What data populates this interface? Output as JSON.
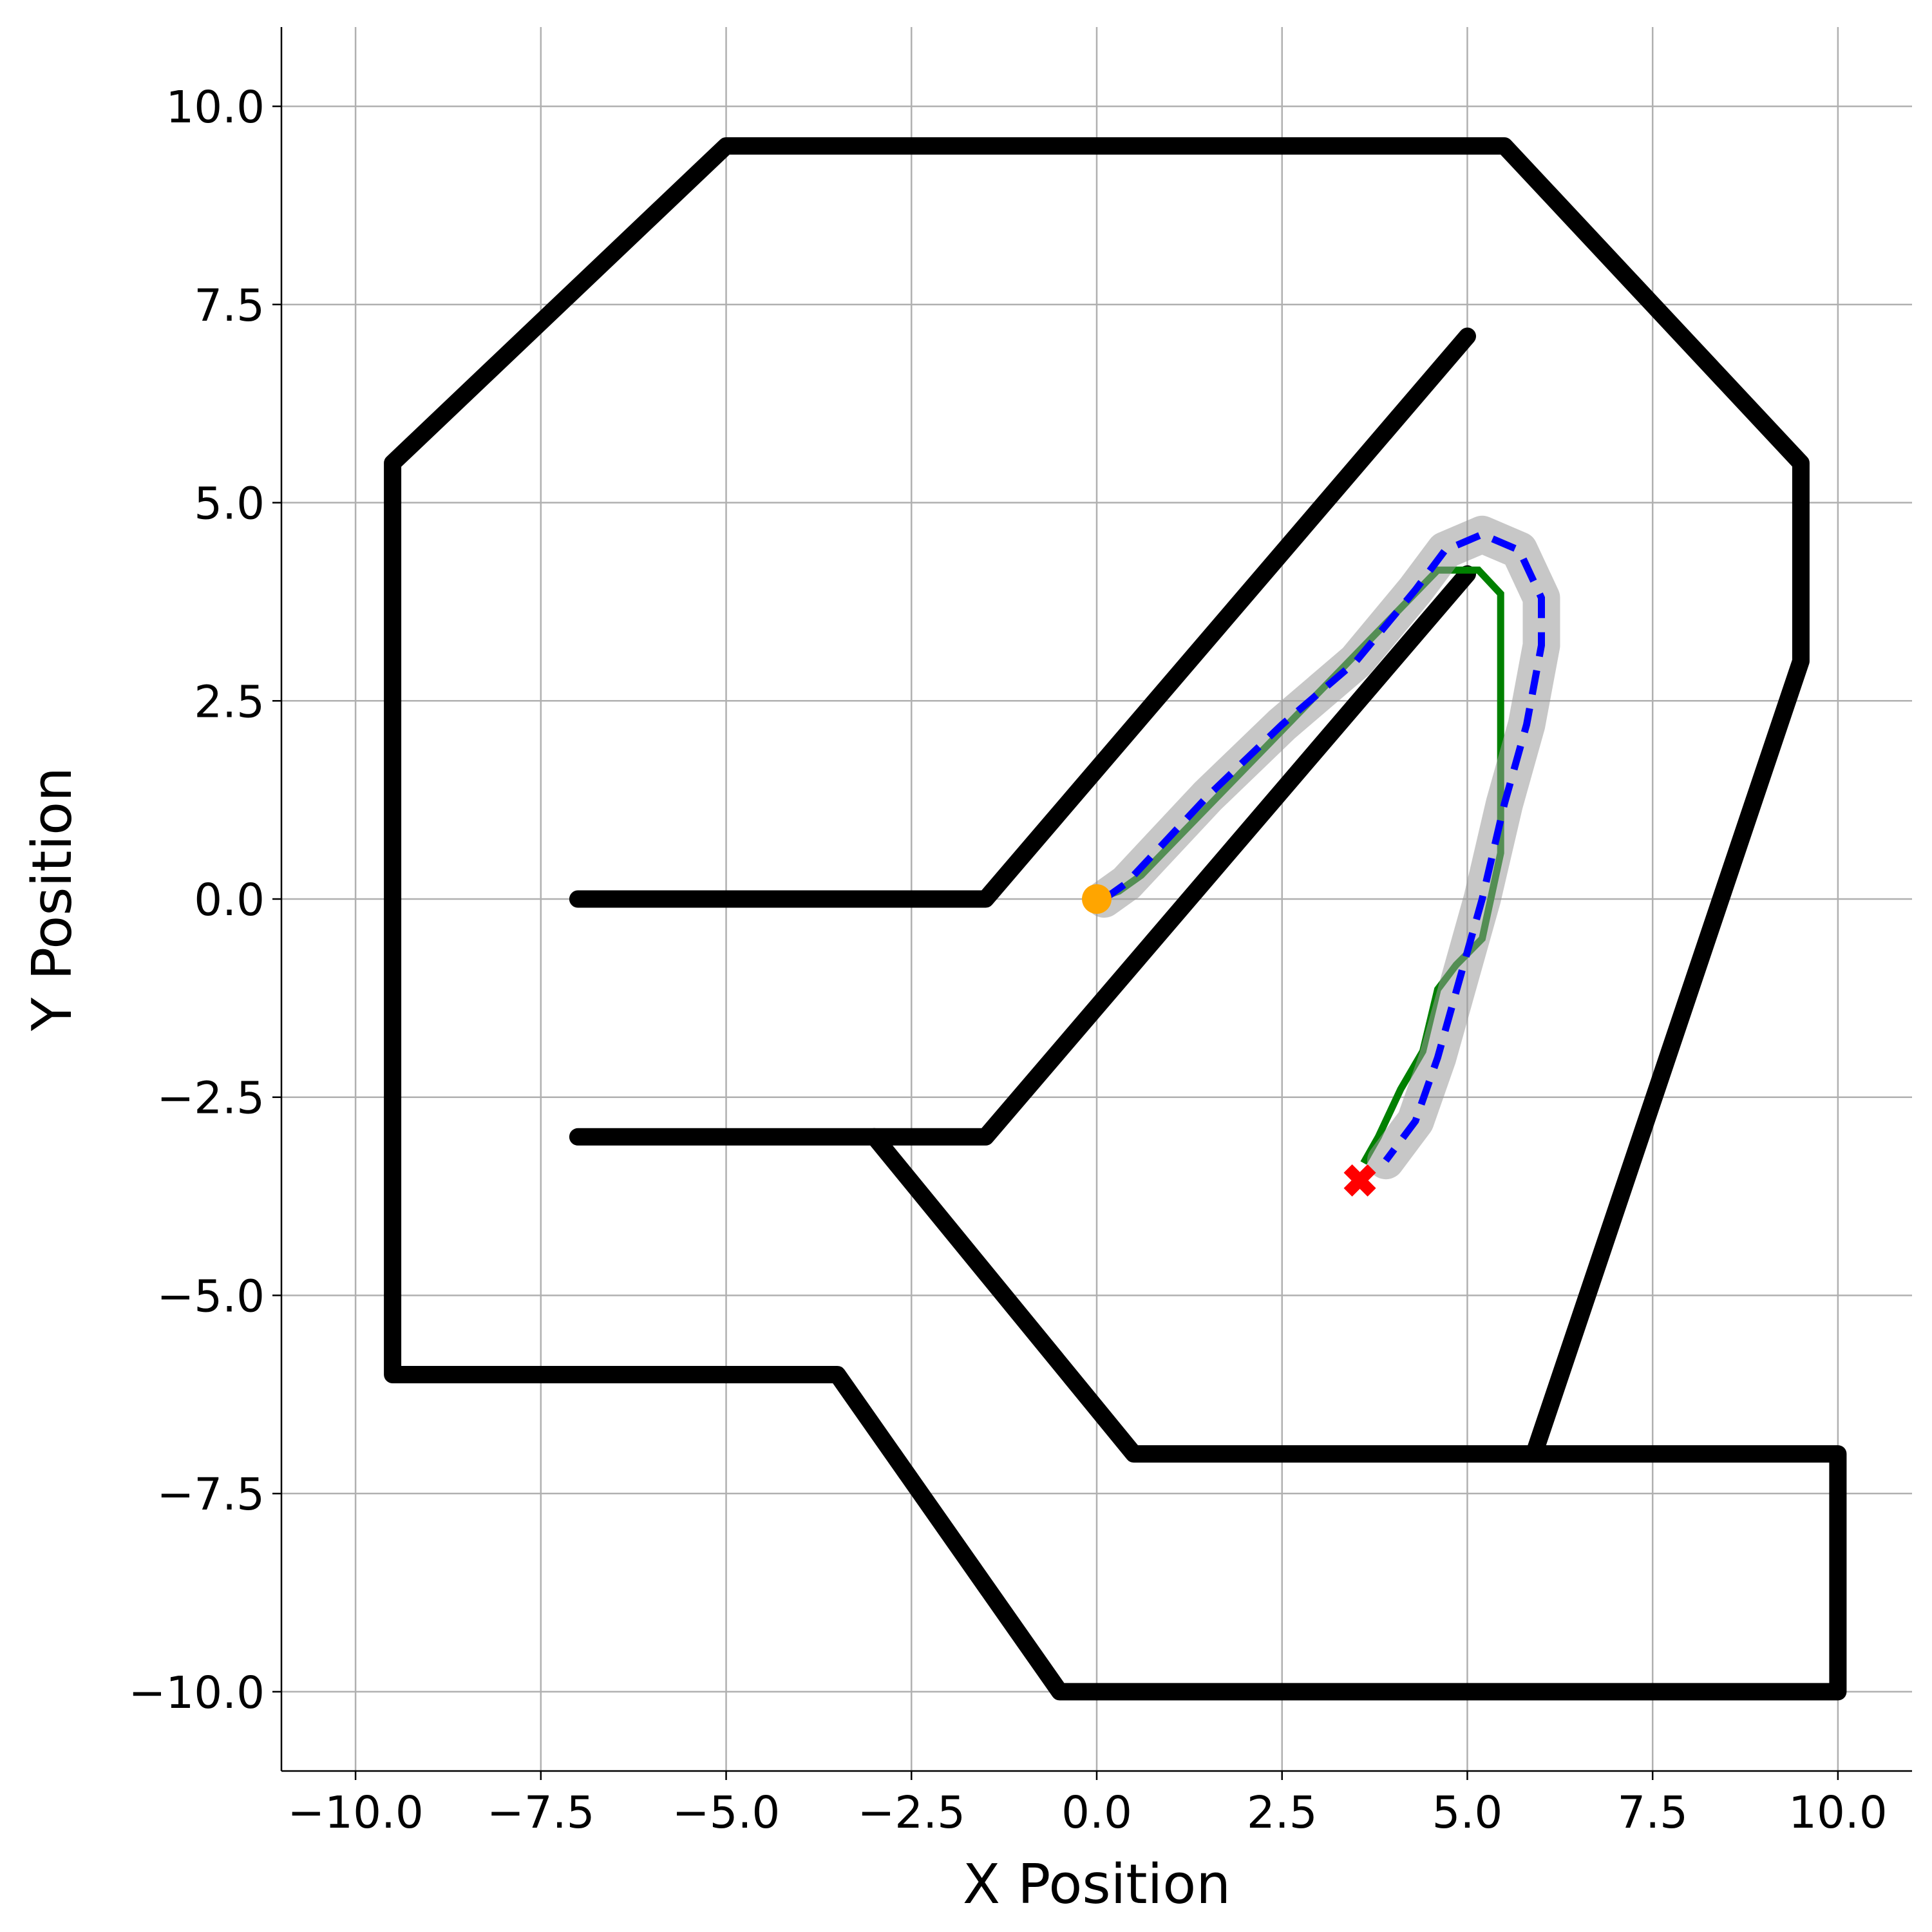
{
  "chart_data": {
    "type": "line",
    "xlabel": "X Position",
    "ylabel": "Y Position",
    "xlim": [
      -11,
      11
    ],
    "ylim": [
      -11,
      11
    ],
    "grid": true,
    "xticks": [
      {
        "value": -10,
        "label": "−10.0"
      },
      {
        "value": -7.5,
        "label": "−7.5"
      },
      {
        "value": -5,
        "label": "−5.0"
      },
      {
        "value": -2.5,
        "label": "−2.5"
      },
      {
        "value": 0,
        "label": "0.0"
      },
      {
        "value": 2.5,
        "label": "2.5"
      },
      {
        "value": 5,
        "label": "5.0"
      },
      {
        "value": 7.5,
        "label": "7.5"
      },
      {
        "value": 10,
        "label": "10.0"
      }
    ],
    "yticks": [
      {
        "value": -10,
        "label": "−10.0"
      },
      {
        "value": -7.5,
        "label": "−7.5"
      },
      {
        "value": -5,
        "label": "−5.0"
      },
      {
        "value": -2.5,
        "label": "−2.5"
      },
      {
        "value": 0,
        "label": "0.0"
      },
      {
        "value": 2.5,
        "label": "2.5"
      },
      {
        "value": 5,
        "label": "5.0"
      },
      {
        "value": 7.5,
        "label": "7.5"
      },
      {
        "value": 10,
        "label": "10.0"
      }
    ],
    "series": [
      {
        "color": "#000000",
        "linestyle": "solid",
        "x": [
          5.9,
          9.5,
          9.5,
          5.5,
          -5,
          -9.5,
          -9.5,
          -3.5,
          -0.5,
          10,
          10,
          0.5,
          -3
        ],
        "y": [
          -7,
          3,
          5.5,
          9.5,
          9.5,
          5.5,
          -6,
          -6,
          -10,
          -10,
          -7,
          -7,
          -3
        ]
      },
      {
        "color": "#000000",
        "linestyle": "solid",
        "x": [
          -7,
          -1.5,
          5
        ],
        "y": [
          0,
          0,
          7.1
        ]
      },
      {
        "color": "#000000",
        "linestyle": "solid",
        "x": [
          -7,
          -1.5,
          5
        ],
        "y": [
          -3,
          -3,
          4.1
        ]
      },
      {
        "color": "#008000",
        "linestyle": "solid",
        "x": [
          0,
          0.3,
          0.6,
          4.6,
          5.15,
          5.45,
          5.45,
          5.45,
          5.2,
          4.85,
          4.6,
          4.4,
          4.1,
          3.8,
          3.6
        ],
        "y": [
          0,
          0.1,
          0.3,
          4.15,
          4.15,
          3.85,
          1.7,
          0.58,
          -0.5,
          -0.83,
          -1.14,
          -1.92,
          -2.4,
          -3.0,
          -3.33
        ]
      },
      {
        "color": "#0000ff",
        "linestyle": "dashed",
        "shadow": "#999999",
        "x": [
          0.1,
          0.4,
          0.8,
          1.5,
          2.5,
          3.5,
          4.3,
          4.7,
          5.2,
          5.7,
          6.0,
          6.0,
          5.8,
          5.5,
          5.2,
          4.9,
          4.6,
          4.3,
          3.9
        ],
        "y": [
          0,
          0.2,
          0.6,
          1.3,
          2.2,
          3.0,
          3.9,
          4.4,
          4.6,
          4.4,
          3.8,
          3.2,
          2.2,
          1.2,
          0,
          -1,
          -2,
          -2.8,
          -3.3
        ]
      },
      {
        "color": "#ffa500",
        "marker": "o",
        "x": [
          0
        ],
        "y": [
          0
        ]
      },
      {
        "color": "#ff0000",
        "marker": "X",
        "x": [
          3.55
        ],
        "y": [
          -3.55
        ]
      }
    ]
  }
}
